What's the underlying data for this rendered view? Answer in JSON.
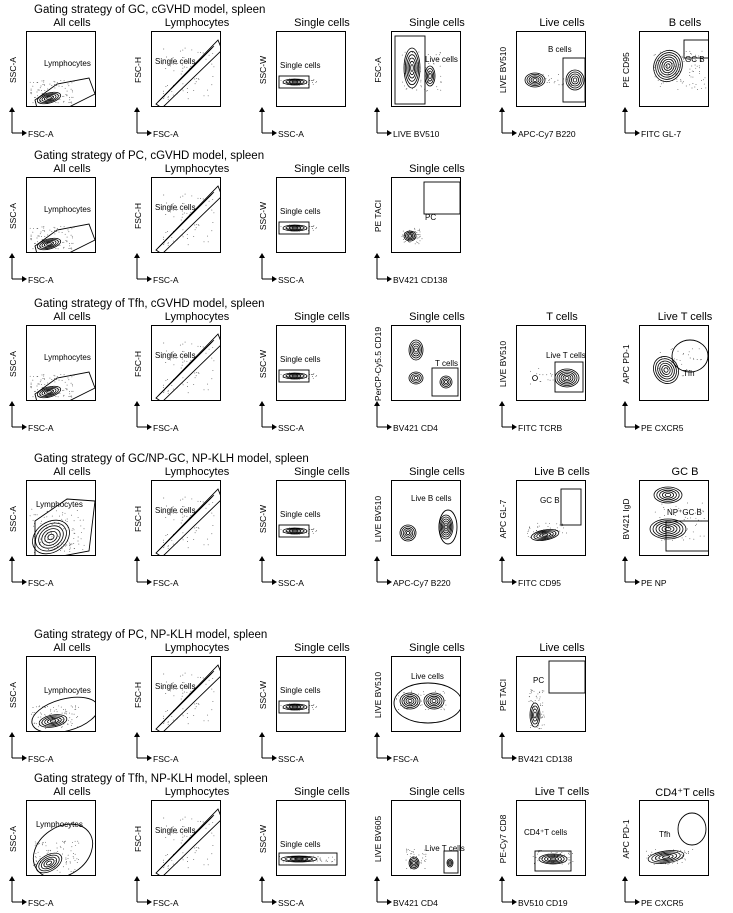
{
  "rows": [
    {
      "title": "Gating strategy of GC, cGVHD model, spleen",
      "panels": [
        {
          "title": "All cells",
          "ylabel": "SSC-A",
          "xlabel": "FSC-A",
          "gate": "Lymphocytes",
          "icon": "polygon-gate",
          "kind": "blob-lowleft"
        },
        {
          "title": "Lymphocytes",
          "ylabel": "FSC-H",
          "xlabel": "FSC-A",
          "gate": "Single cells",
          "icon": "diagonal-gate",
          "kind": "diagonal"
        },
        {
          "title": "Single cells",
          "ylabel": "SSC-W",
          "xlabel": "SSC-A",
          "gate": "Single cells",
          "icon": "rect-gate",
          "kind": "flat"
        },
        {
          "title": "Single cells",
          "ylabel": "FSC-A",
          "xlabel": "LIVE BV510",
          "gate": "Live cells",
          "icon": "rect-gate",
          "kind": "live"
        },
        {
          "title": "Live cells",
          "ylabel": "LIVE BV510",
          "xlabel": "APC-Cy7 B220",
          "gate": "B cells",
          "icon": "rect-gate",
          "kind": "two-blobs"
        },
        {
          "title": "B cells",
          "ylabel": "PE CD95",
          "xlabel": "FITC GL-7",
          "gate": "GC B",
          "icon": "rect-gate",
          "kind": "gcb"
        }
      ]
    },
    {
      "title": "Gating strategy of PC, cGVHD model, spleen",
      "panels": [
        {
          "title": "All cells",
          "ylabel": "SSC-A",
          "xlabel": "FSC-A",
          "gate": "Lymphocytes",
          "icon": "polygon-gate",
          "kind": "blob-lowleft"
        },
        {
          "title": "Lymphocytes",
          "ylabel": "FSC-H",
          "xlabel": "FSC-A",
          "gate": "Single cells",
          "icon": "diagonal-gate",
          "kind": "diagonal"
        },
        {
          "title": "Single cells",
          "ylabel": "SSC-W",
          "xlabel": "SSC-A",
          "gate": "Single cells",
          "icon": "rect-gate",
          "kind": "flat"
        },
        {
          "title": "Single cells",
          "ylabel": "PE TACI",
          "xlabel": "BV421 CD138",
          "gate": "PC",
          "icon": "rect-gate",
          "kind": "pc"
        }
      ]
    },
    {
      "title": "Gating strategy of Tfh, cGVHD model, spleen",
      "panels": [
        {
          "title": "All cells",
          "ylabel": "SSC-A",
          "xlabel": "FSC-A",
          "gate": "Lymphocytes",
          "icon": "polygon-gate",
          "kind": "blob-lowleft"
        },
        {
          "title": "Lymphocytes",
          "ylabel": "FSC-H",
          "xlabel": "FSC-A",
          "gate": "Single cells",
          "icon": "diagonal-gate",
          "kind": "diagonal"
        },
        {
          "title": "Single cells",
          "ylabel": "SSC-W",
          "xlabel": "SSC-A",
          "gate": "Single cells",
          "icon": "rect-gate",
          "kind": "flat"
        },
        {
          "title": "Single cells",
          "ylabel": "PerCP-Cy5.5 CD19",
          "xlabel": "BV421 CD4",
          "gate": "T cells",
          "icon": "rect-gate",
          "kind": "tcells"
        },
        {
          "title": "T cells",
          "ylabel": "LIVE BV510",
          "xlabel": "FITC TCRB",
          "gate": "Live T cells",
          "icon": "rect-gate",
          "kind": "livet"
        },
        {
          "title": "Live T cells",
          "ylabel": "APC PD-1",
          "xlabel": "PE CXCR5",
          "gate": "Tfh",
          "icon": "ellipse-gate",
          "kind": "tfh"
        }
      ]
    },
    {
      "title": "Gating strategy of GC/NP-GC, NP-KLH model, spleen",
      "panels": [
        {
          "title": "All cells",
          "ylabel": "SSC-A",
          "xlabel": "FSC-A",
          "gate": "Lymphocytes",
          "icon": "polygon-gate",
          "kind": "blob-big"
        },
        {
          "title": "Lymphocytes",
          "ylabel": "FSC-H",
          "xlabel": "FSC-A",
          "gate": "Single cells",
          "icon": "diagonal-gate",
          "kind": "diagonal"
        },
        {
          "title": "Single cells",
          "ylabel": "SSC-W",
          "xlabel": "SSC-A",
          "gate": "Single cells",
          "icon": "rect-gate",
          "kind": "flat"
        },
        {
          "title": "Single cells",
          "ylabel": "LIVE BV510",
          "xlabel": "APC-Cy7 B220",
          "gate": "Live B cells",
          "icon": "ellipse-gate",
          "kind": "liveb"
        },
        {
          "title": "Live B cells",
          "ylabel": "APC GL-7",
          "xlabel": "FITC CD95",
          "gate": "GC B",
          "icon": "rect-gate",
          "kind": "gcb2"
        },
        {
          "title": "GC B",
          "ylabel": "BV421 IgD",
          "xlabel": "PE NP",
          "gate": "NP⁺GC B",
          "icon": "rect-gate",
          "kind": "npgcb"
        }
      ]
    },
    {
      "title": "Gating strategy of PC, NP-KLH model, spleen",
      "panels": [
        {
          "title": "All cells",
          "ylabel": "SSC-A",
          "xlabel": "FSC-A",
          "gate": "Lymphocytes",
          "icon": "ellipse-gate",
          "kind": "blob-ellipse"
        },
        {
          "title": "Lymphocytes",
          "ylabel": "FSC-H",
          "xlabel": "FSC-A",
          "gate": "Single cells",
          "icon": "diagonal-gate",
          "kind": "diagonal"
        },
        {
          "title": "Single cells",
          "ylabel": "SSC-W",
          "xlabel": "SSC-A",
          "gate": "Single cells",
          "icon": "rect-gate",
          "kind": "flat"
        },
        {
          "title": "Single cells",
          "ylabel": "LIVE BV510",
          "xlabel": "FSC-A",
          "gate": "Live cells",
          "icon": "ellipse-gate",
          "kind": "livefsc"
        },
        {
          "title": "Live cells",
          "ylabel": "PE TACI",
          "xlabel": "BV421 CD138",
          "gate": "PC",
          "icon": "rect-gate",
          "kind": "pc2"
        }
      ]
    },
    {
      "title": "Gating strategy of Tfh, NP-KLH model, spleen",
      "panels": [
        {
          "title": "All cells",
          "ylabel": "SSC-A",
          "xlabel": "FSC-A",
          "gate": "Lymphocytes",
          "icon": "ellipse-gate",
          "kind": "blob-ellipse2"
        },
        {
          "title": "Lymphocytes",
          "ylabel": "FSC-H",
          "xlabel": "FSC-A",
          "gate": "Single cells",
          "icon": "diagonal-gate",
          "kind": "diagonal"
        },
        {
          "title": "Single cells",
          "ylabel": "SSC-W",
          "xlabel": "SSC-A",
          "gate": "Single cells",
          "icon": "rect-gate",
          "kind": "flat2"
        },
        {
          "title": "Single cells",
          "ylabel": "LIVE BV605",
          "xlabel": "BV421 CD4",
          "gate": "Live T cells",
          "icon": "rect-gate",
          "kind": "bv605"
        },
        {
          "title": "Live T cells",
          "ylabel": "PE-Cy7 CD8",
          "xlabel": "BV510 CD19",
          "gate": "CD4⁺T cells",
          "icon": "rect-gate",
          "kind": "cd4t"
        },
        {
          "title": "CD4⁺T cells",
          "ylabel": "APC PD-1",
          "xlabel": "PE CXCR5",
          "gate": "Tfh",
          "icon": "ellipse-gate",
          "kind": "tfh2"
        }
      ]
    }
  ]
}
